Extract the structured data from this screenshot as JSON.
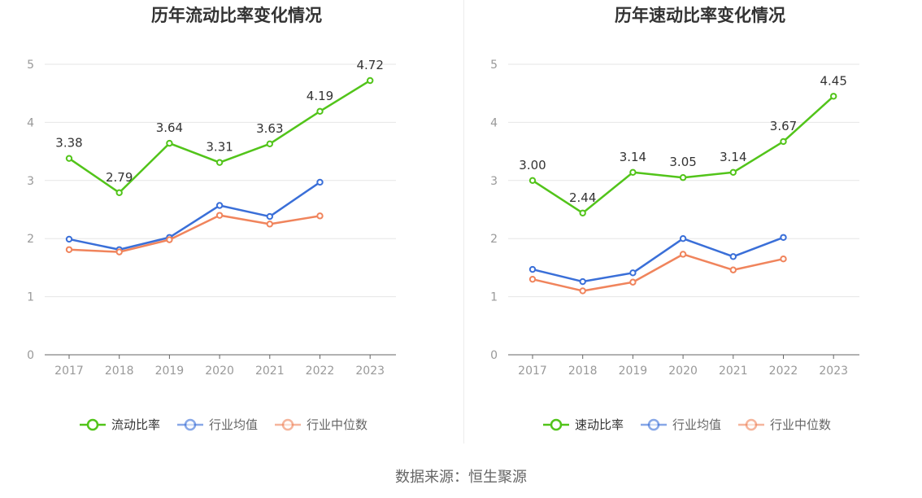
{
  "colors": {
    "primary": "#52c41a",
    "industry_avg": "#3a6fd8",
    "industry_median": "#f0845c",
    "grid": "#e6e6e6",
    "axis": "#999999",
    "text": "#333333"
  },
  "chart_data": [
    {
      "type": "line",
      "title": "历年流动比率变化情况",
      "categories": [
        "2017",
        "2018",
        "2019",
        "2020",
        "2021",
        "2022",
        "2023"
      ],
      "ylim": [
        0,
        5
      ],
      "yticks": [
        "0",
        "1",
        "2",
        "3",
        "4",
        "5"
      ],
      "grid": true,
      "legend_position": "bottom",
      "series": [
        {
          "name": "流动比率",
          "color_key": "primary",
          "values": [
            3.38,
            2.79,
            3.64,
            3.31,
            3.63,
            4.19,
            4.72
          ],
          "labels": [
            "3.38",
            "2.79",
            "3.64",
            "3.31",
            "3.63",
            "4.19",
            "4.72"
          ]
        },
        {
          "name": "行业均值",
          "color_key": "industry_avg",
          "values": [
            1.99,
            1.81,
            2.02,
            2.57,
            2.38,
            2.97,
            null
          ]
        },
        {
          "name": "行业中位数",
          "color_key": "industry_median",
          "values": [
            1.81,
            1.77,
            1.98,
            2.4,
            2.25,
            2.39,
            null
          ]
        }
      ]
    },
    {
      "type": "line",
      "title": "历年速动比率变化情况",
      "categories": [
        "2017",
        "2018",
        "2019",
        "2020",
        "2021",
        "2022",
        "2023"
      ],
      "ylim": [
        0,
        5
      ],
      "yticks": [
        "0",
        "1",
        "2",
        "3",
        "4",
        "5"
      ],
      "grid": true,
      "legend_position": "bottom",
      "series": [
        {
          "name": "速动比率",
          "color_key": "primary",
          "values": [
            3.0,
            2.44,
            3.14,
            3.05,
            3.14,
            3.67,
            4.45
          ],
          "labels": [
            "3.00",
            "2.44",
            "3.14",
            "3.05",
            "3.14",
            "3.67",
            "4.45"
          ]
        },
        {
          "name": "行业均值",
          "color_key": "industry_avg",
          "values": [
            1.47,
            1.26,
            1.41,
            2.0,
            1.69,
            2.02,
            null
          ]
        },
        {
          "name": "行业中位数",
          "color_key": "industry_median",
          "values": [
            1.3,
            1.1,
            1.25,
            1.73,
            1.46,
            1.65,
            null
          ]
        }
      ]
    }
  ],
  "footer": "数据来源：恒生聚源"
}
